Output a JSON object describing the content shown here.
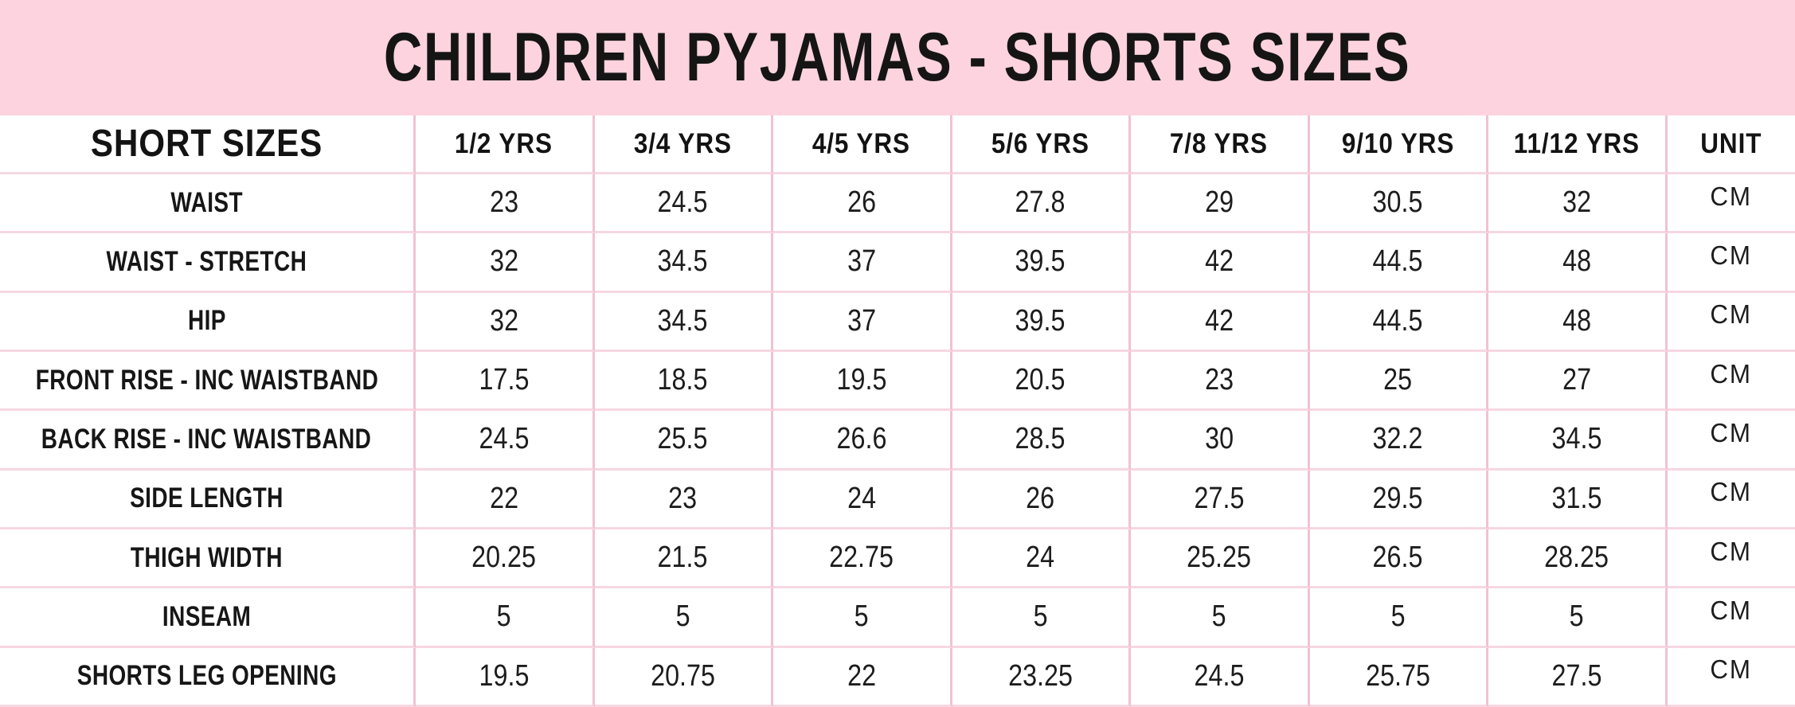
{
  "title": "CHILDREN PYJAMAS - SHORTS SIZES",
  "colors": {
    "banner_bg": "#fcd3de",
    "border_vertical": "#f1c2d2",
    "border_horizontal": "#f7d7e1",
    "text": "#1b1b1b"
  },
  "chart_data": {
    "type": "table",
    "title": "CHILDREN PYJAMAS - SHORTS SIZES",
    "unit_label": "CM",
    "columns": [
      "SHORT SIZES",
      "1/2 YRS",
      "3/4 YRS",
      "4/5 YRS",
      "5/6 YRS",
      "7/8 YRS",
      "9/10 YRS",
      "11/12 YRS",
      "UNIT"
    ],
    "rows": [
      {
        "label": "WAIST",
        "values": [
          "23",
          "24.5",
          "26",
          "27.8",
          "29",
          "30.5",
          "32"
        ],
        "unit": "CM"
      },
      {
        "label": "WAIST - STRETCH",
        "values": [
          "32",
          "34.5",
          "37",
          "39.5",
          "42",
          "44.5",
          "48"
        ],
        "unit": "CM"
      },
      {
        "label": "HIP",
        "values": [
          "32",
          "34.5",
          "37",
          "39.5",
          "42",
          "44.5",
          "48"
        ],
        "unit": "CM"
      },
      {
        "label": "FRONT RISE - INC WAISTBAND",
        "values": [
          "17.5",
          "18.5",
          "19.5",
          "20.5",
          "23",
          "25",
          "27"
        ],
        "unit": "CM"
      },
      {
        "label": "BACK RISE - INC WAISTBAND",
        "values": [
          "24.5",
          "25.5",
          "26.6",
          "28.5",
          "30",
          "32.2",
          "34.5"
        ],
        "unit": "CM"
      },
      {
        "label": "SIDE LENGTH",
        "values": [
          "22",
          "23",
          "24",
          "26",
          "27.5",
          "29.5",
          "31.5"
        ],
        "unit": "CM"
      },
      {
        "label": "THIGH WIDTH",
        "values": [
          "20.25",
          "21.5",
          "22.75",
          "24",
          "25.25",
          "26.5",
          "28.25"
        ],
        "unit": "CM"
      },
      {
        "label": "INSEAM",
        "values": [
          "5",
          "5",
          "5",
          "5",
          "5",
          "5",
          "5"
        ],
        "unit": "CM"
      },
      {
        "label": "SHORTS LEG OPENING",
        "values": [
          "19.5",
          "20.75",
          "22",
          "23.25",
          "24.5",
          "25.75",
          "27.5"
        ],
        "unit": "CM"
      }
    ]
  }
}
